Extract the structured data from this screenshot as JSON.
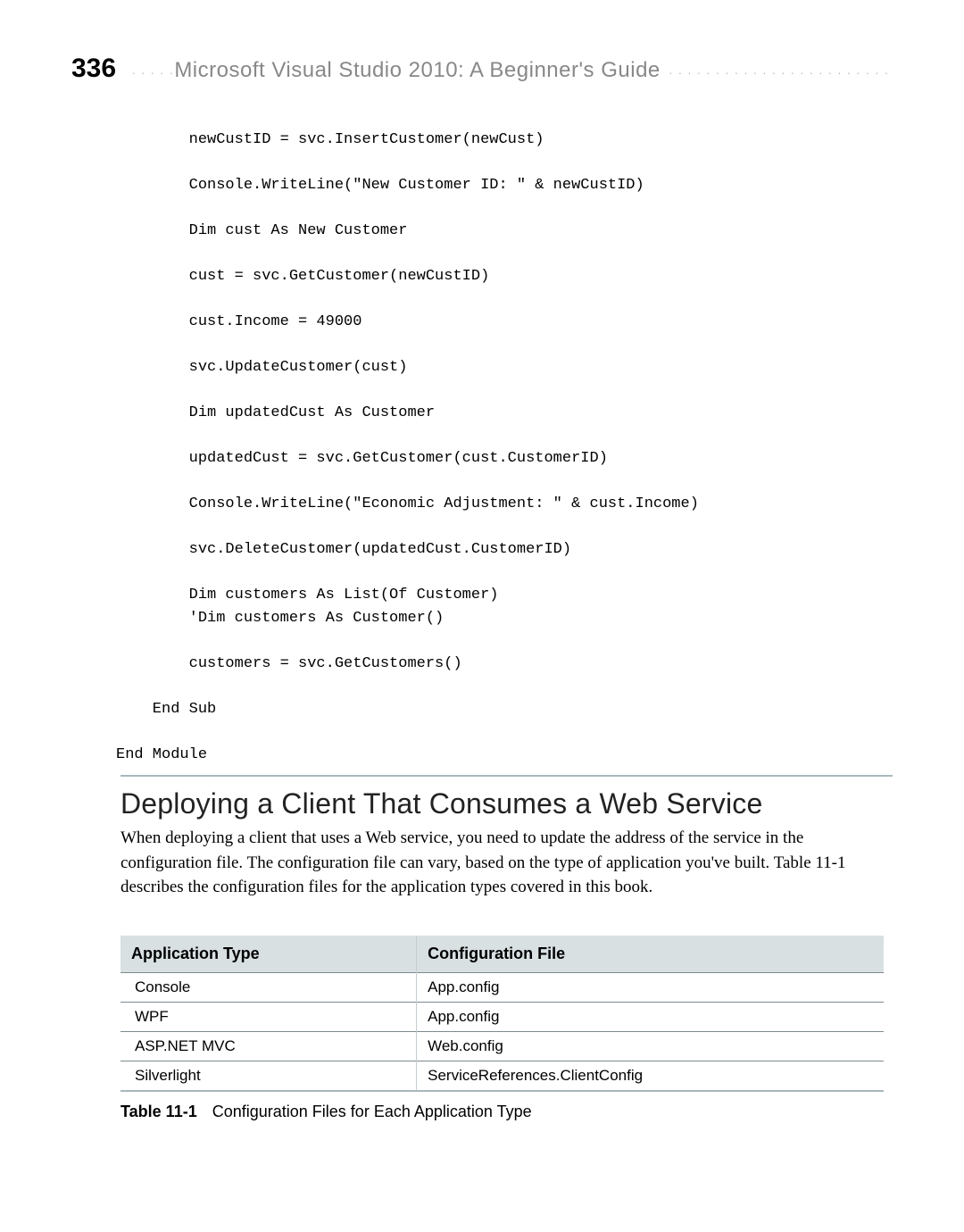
{
  "header": {
    "page_number": "336",
    "book_title": "Microsoft Visual Studio 2010: A Beginner's Guide"
  },
  "code": "        newCustID = svc.InsertCustomer(newCust)\n\n        Console.WriteLine(\"New Customer ID: \" & newCustID)\n\n        Dim cust As New Customer\n\n        cust = svc.GetCustomer(newCustID)\n\n        cust.Income = 49000\n\n        svc.UpdateCustomer(cust)\n\n        Dim updatedCust As Customer\n\n        updatedCust = svc.GetCustomer(cust.CustomerID)\n\n        Console.WriteLine(\"Economic Adjustment: \" & cust.Income)\n\n        svc.DeleteCustomer(updatedCust.CustomerID)\n\n        Dim customers As List(Of Customer)\n        'Dim customers As Customer()\n\n        customers = svc.GetCustomers()\n\n    End Sub\n\nEnd Module",
  "section": {
    "heading": "Deploying a Client That Consumes a Web Service",
    "body": "When deploying a client that uses a Web service, you need to update the address of the service in the configuration file. The configuration file can vary, based on the type of application you've built. Table 11-1 describes the configuration files for the application types covered in this book."
  },
  "table": {
    "columns": [
      "Application Type",
      "Configuration File"
    ],
    "rows": [
      [
        "Console",
        "App.config"
      ],
      [
        "WPF",
        "App.config"
      ],
      [
        "ASP.NET MVC",
        "Web.config"
      ],
      [
        "Silverlight",
        "ServiceReferences.ClientConfig"
      ]
    ],
    "caption_label": "Table 11-1",
    "caption_text": "Configuration Files for Each Application Type"
  }
}
